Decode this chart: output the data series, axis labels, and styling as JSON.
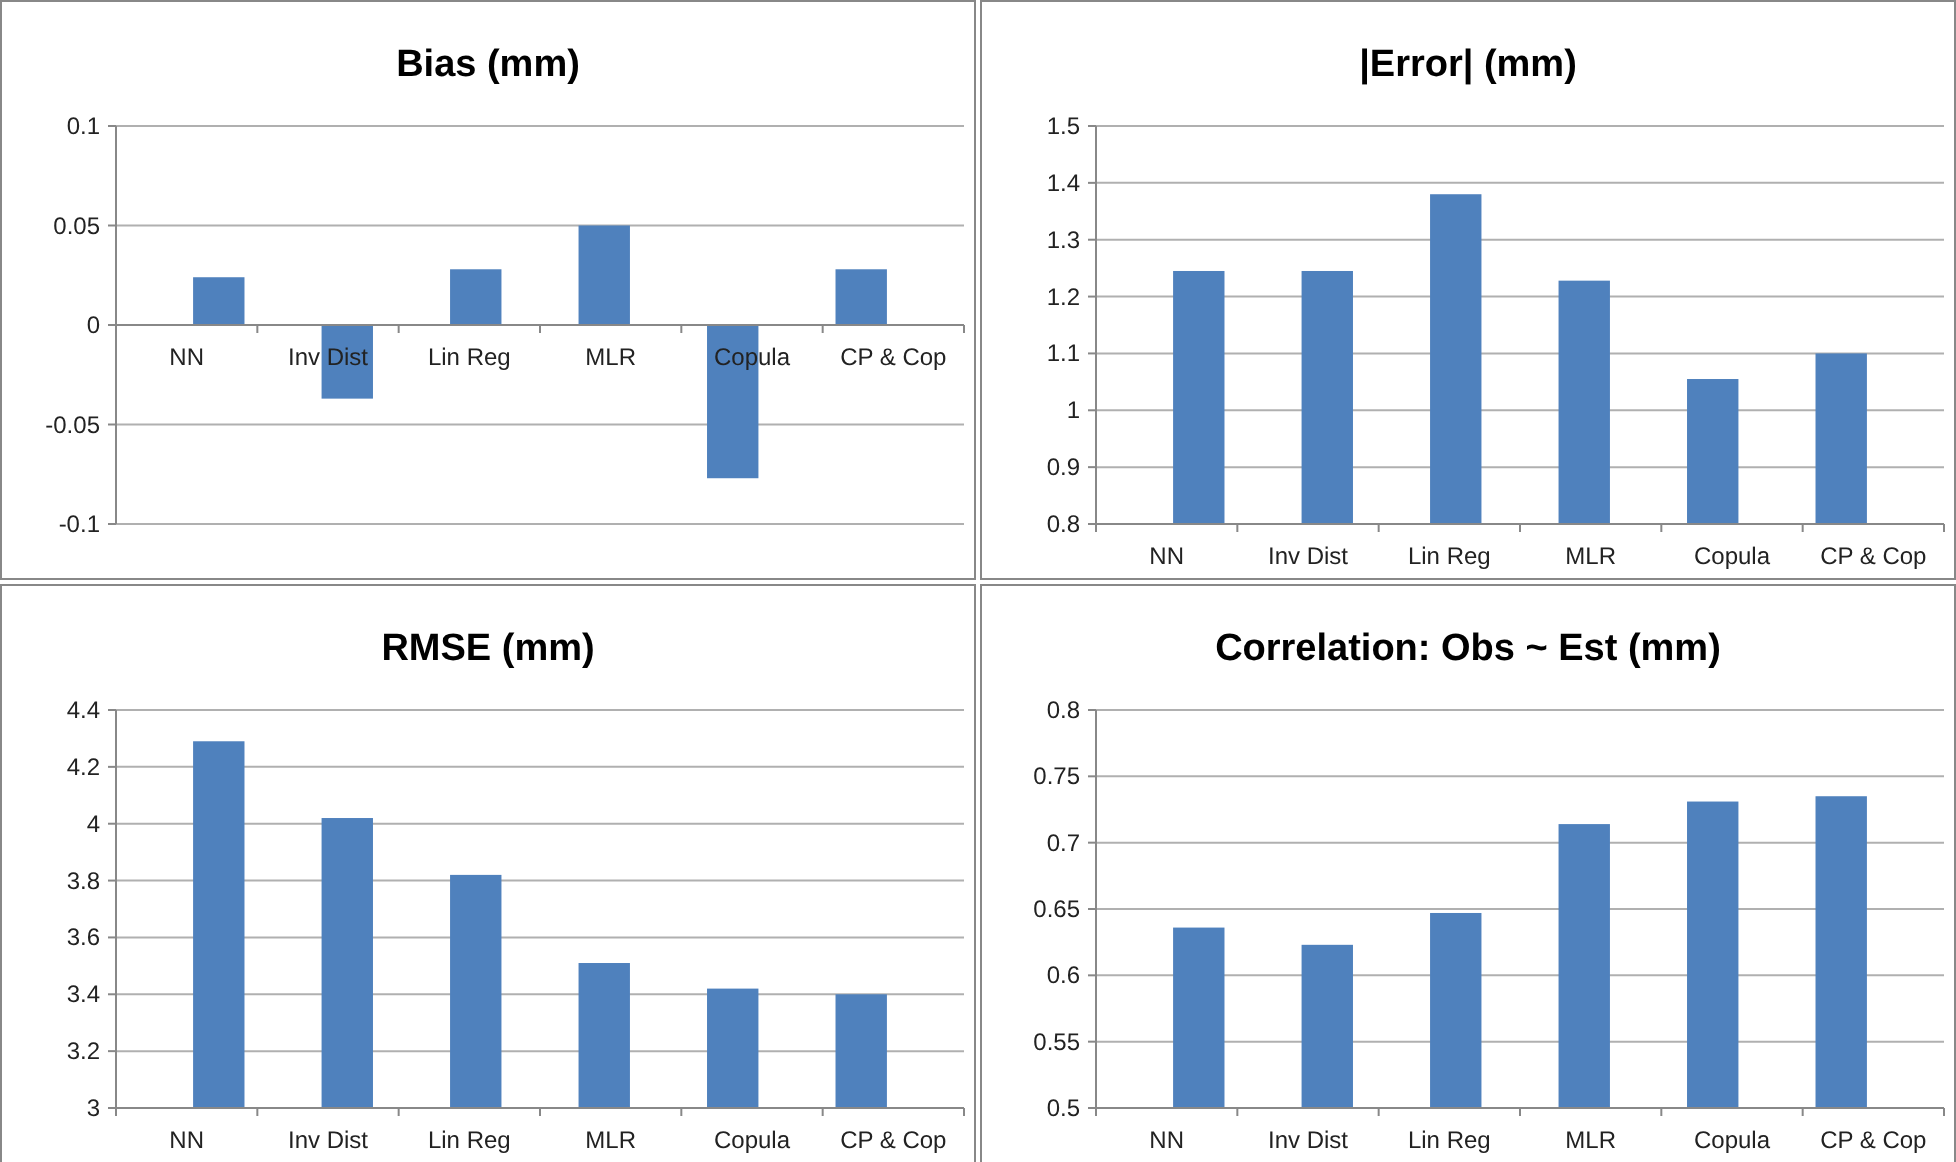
{
  "chart_data": [
    {
      "type": "bar",
      "title": "Bias (mm)",
      "categories": [
        "NN",
        "Inv Dist",
        "Lin Reg",
        "MLR",
        "Copula",
        "CP & Cop"
      ],
      "values": [
        0.024,
        -0.037,
        0.028,
        0.05,
        -0.077,
        0.028
      ],
      "color": "#4f81bd",
      "ylim": [
        -0.1,
        0.1
      ],
      "yticks": [
        -0.1,
        -0.05,
        0,
        0.05,
        0.1
      ],
      "grid": "y"
    },
    {
      "type": "bar",
      "title": "|Error| (mm)",
      "categories": [
        "NN",
        "Inv Dist",
        "Lin Reg",
        "MLR",
        "Copula",
        "CP & Cop"
      ],
      "values": [
        1.245,
        1.245,
        1.38,
        1.228,
        1.055,
        1.1
      ],
      "color": "#4f81bd",
      "ylim": [
        0.8,
        1.5
      ],
      "yticks": [
        0.8,
        0.9,
        1,
        1.1,
        1.2,
        1.3,
        1.4,
        1.5
      ],
      "grid": "y"
    },
    {
      "type": "bar",
      "title": "RMSE (mm)",
      "categories": [
        "NN",
        "Inv Dist",
        "Lin Reg",
        "MLR",
        "Copula",
        "CP & Cop"
      ],
      "values": [
        4.29,
        4.02,
        3.82,
        3.51,
        3.42,
        3.4
      ],
      "color": "#4f81bd",
      "ylim": [
        3,
        4.4
      ],
      "yticks": [
        3,
        3.2,
        3.4,
        3.6,
        3.8,
        4,
        4.2,
        4.4
      ],
      "grid": "y"
    },
    {
      "type": "bar",
      "title": "Correlation:  Obs ~ Est (mm)",
      "categories": [
        "NN",
        "Inv Dist",
        "Lin Reg",
        "MLR",
        "Copula",
        "CP & Cop"
      ],
      "values": [
        0.636,
        0.623,
        0.647,
        0.714,
        0.731,
        0.735
      ],
      "color": "#4f81bd",
      "ylim": [
        0.5,
        0.8
      ],
      "yticks": [
        0.5,
        0.55,
        0.6,
        0.65,
        0.7,
        0.75,
        0.8
      ],
      "grid": "y"
    }
  ]
}
